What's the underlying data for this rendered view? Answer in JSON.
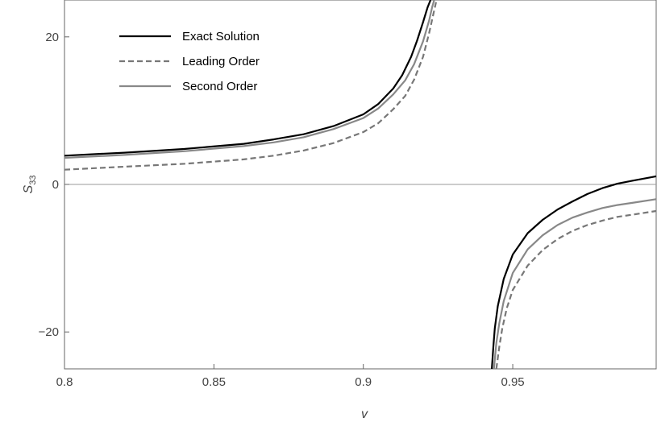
{
  "chart_data": {
    "type": "line",
    "title": "",
    "xlabel": "v",
    "ylabel": {
      "base": "S",
      "subscript": "33"
    },
    "xlim": [
      0.8,
      0.998
    ],
    "ylim": [
      -25,
      25
    ],
    "x_ticks": [
      {
        "value": 0.8,
        "label": "0.8"
      },
      {
        "value": 0.85,
        "label": "0.85"
      },
      {
        "value": 0.9,
        "label": "0.9"
      },
      {
        "value": 0.95,
        "label": "0.95"
      }
    ],
    "y_ticks": [
      {
        "value": -20,
        "label": "−20"
      },
      {
        "value": 0,
        "label": "0"
      },
      {
        "value": 20,
        "label": "20"
      }
    ],
    "zero_line": true,
    "grid": false,
    "legend_position": "top-left",
    "series": [
      {
        "name": "Exact Solution",
        "color": "#000000",
        "dash": "solid",
        "segments": [
          [
            [
              0.8,
              3.9
            ],
            [
              0.82,
              4.3
            ],
            [
              0.84,
              4.8
            ],
            [
              0.86,
              5.5
            ],
            [
              0.87,
              6.1
            ],
            [
              0.88,
              6.8
            ],
            [
              0.89,
              7.9
            ],
            [
              0.9,
              9.5
            ],
            [
              0.905,
              10.9
            ],
            [
              0.91,
              13.0
            ],
            [
              0.913,
              14.8
            ],
            [
              0.916,
              17.3
            ],
            [
              0.918,
              19.5
            ],
            [
              0.92,
              22.0
            ],
            [
              0.9215,
              24.0
            ],
            [
              0.9225,
              25.0
            ]
          ],
          [
            [
              0.943,
              -25.0
            ],
            [
              0.9435,
              -22.0
            ],
            [
              0.944,
              -19.5
            ],
            [
              0.945,
              -16.5
            ],
            [
              0.947,
              -12.8
            ],
            [
              0.95,
              -9.5
            ],
            [
              0.955,
              -6.6
            ],
            [
              0.96,
              -4.8
            ],
            [
              0.965,
              -3.4
            ],
            [
              0.97,
              -2.3
            ],
            [
              0.975,
              -1.3
            ],
            [
              0.98,
              -0.5
            ],
            [
              0.985,
              0.1
            ],
            [
              0.99,
              0.5
            ],
            [
              0.998,
              1.1
            ]
          ]
        ]
      },
      {
        "name": "Leading Order",
        "color": "#777777",
        "dash": "dashed",
        "segments": [
          [
            [
              0.8,
              2.0
            ],
            [
              0.82,
              2.4
            ],
            [
              0.84,
              2.8
            ],
            [
              0.86,
              3.4
            ],
            [
              0.87,
              3.9
            ],
            [
              0.88,
              4.6
            ],
            [
              0.89,
              5.6
            ],
            [
              0.9,
              7.1
            ],
            [
              0.905,
              8.3
            ],
            [
              0.91,
              10.2
            ],
            [
              0.914,
              12.0
            ],
            [
              0.917,
              14.2
            ],
            [
              0.92,
              17.3
            ],
            [
              0.922,
              20.5
            ],
            [
              0.9235,
              23.2
            ],
            [
              0.9245,
              25.0
            ]
          ],
          [
            [
              0.9445,
              -25.0
            ],
            [
              0.9455,
              -22.0
            ],
            [
              0.9465,
              -19.5
            ],
            [
              0.948,
              -16.8
            ],
            [
              0.95,
              -14.3
            ],
            [
              0.955,
              -11.0
            ],
            [
              0.96,
              -8.9
            ],
            [
              0.965,
              -7.4
            ],
            [
              0.97,
              -6.3
            ],
            [
              0.975,
              -5.5
            ],
            [
              0.98,
              -4.9
            ],
            [
              0.985,
              -4.4
            ],
            [
              0.99,
              -4.1
            ],
            [
              0.998,
              -3.6
            ]
          ]
        ]
      },
      {
        "name": "Second Order",
        "color": "#888888",
        "dash": "solid",
        "segments": [
          [
            [
              0.8,
              3.6
            ],
            [
              0.82,
              4.0
            ],
            [
              0.84,
              4.5
            ],
            [
              0.86,
              5.2
            ],
            [
              0.87,
              5.7
            ],
            [
              0.88,
              6.4
            ],
            [
              0.89,
              7.5
            ],
            [
              0.9,
              9.0
            ],
            [
              0.905,
              10.3
            ],
            [
              0.91,
              12.2
            ],
            [
              0.914,
              14.1
            ],
            [
              0.917,
              16.3
            ],
            [
              0.92,
              19.4
            ],
            [
              0.922,
              22.2
            ],
            [
              0.923,
              24.0
            ],
            [
              0.9237,
              25.0
            ]
          ],
          [
            [
              0.9437,
              -25.0
            ],
            [
              0.9445,
              -21.5
            ],
            [
              0.9455,
              -18.8
            ],
            [
              0.947,
              -15.8
            ],
            [
              0.95,
              -12.0
            ],
            [
              0.955,
              -8.8
            ],
            [
              0.96,
              -6.9
            ],
            [
              0.965,
              -5.5
            ],
            [
              0.97,
              -4.5
            ],
            [
              0.975,
              -3.8
            ],
            [
              0.98,
              -3.2
            ],
            [
              0.985,
              -2.8
            ],
            [
              0.99,
              -2.5
            ],
            [
              0.998,
              -2.0
            ]
          ]
        ]
      }
    ]
  }
}
